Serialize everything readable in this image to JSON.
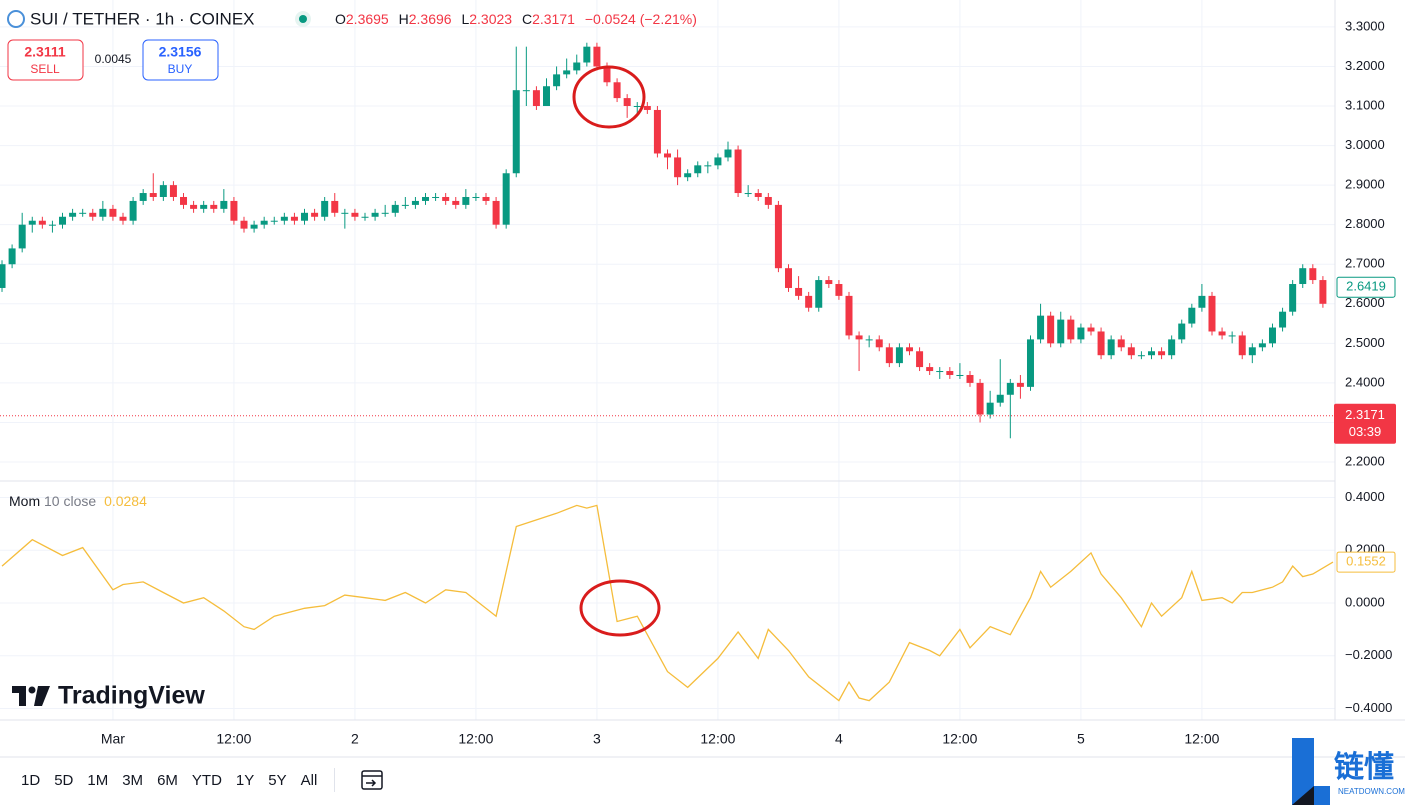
{
  "header": {
    "symbol": "SUI / TETHER · 1h · COINEX",
    "ohlc": [
      {
        "key": "O",
        "value": 2.3695
      },
      {
        "key": "H",
        "value": 2.3696
      },
      {
        "key": "L",
        "value": 2.3023
      },
      {
        "key": "C",
        "value": 2.3171
      }
    ],
    "change": "−0.0524 (−2.21%)"
  },
  "trade": {
    "sell": {
      "price": 2.3111,
      "label": "SELL"
    },
    "spread": 0.0045,
    "buy": {
      "price": 2.3156,
      "label": "BUY"
    }
  },
  "timeframes": [
    "1D",
    "5D",
    "1M",
    "3M",
    "6M",
    "YTD",
    "1Y",
    "5Y",
    "All"
  ],
  "logo": "TradingView",
  "watermark": {
    "title": "链懂",
    "site": "NEATDOWN.COM"
  },
  "chart_data": [
    {
      "type": "candlestick",
      "up_color": "#089981",
      "down_color": "#f23645",
      "x": [
        -11,
        -10,
        -9,
        -8,
        -7,
        -6,
        -5,
        -4,
        -3,
        -2,
        -1,
        0,
        1,
        2,
        3,
        4,
        5,
        6,
        7,
        8,
        9,
        10,
        11,
        12,
        13,
        14,
        15,
        16,
        17,
        18,
        19,
        20,
        21,
        22,
        23,
        24,
        25,
        26,
        27,
        28,
        29,
        30,
        31,
        32,
        33,
        34,
        35,
        36,
        37,
        38,
        39,
        40,
        41,
        42,
        43,
        44,
        45,
        46,
        47,
        48,
        49,
        50,
        51,
        52,
        53,
        54,
        55,
        56,
        57,
        58,
        59,
        60,
        61,
        62,
        63,
        64,
        65,
        66,
        67,
        68,
        69,
        70,
        71,
        72,
        73,
        74,
        75,
        76,
        77,
        78,
        79,
        80,
        81,
        82,
        83,
        84,
        85,
        86,
        87,
        88,
        89,
        90,
        91,
        92,
        93,
        94,
        95,
        96,
        97,
        98,
        99,
        100,
        101,
        102,
        103,
        104,
        105,
        106,
        107,
        108,
        109,
        110,
        111,
        112,
        113,
        114,
        115,
        116,
        117,
        118,
        119,
        120
      ],
      "open": [
        2.64,
        2.7,
        2.74,
        2.8,
        2.81,
        2.8,
        2.8,
        2.82,
        2.83,
        2.83,
        2.82,
        2.84,
        2.82,
        2.81,
        2.86,
        2.88,
        2.87,
        2.9,
        2.87,
        2.85,
        2.84,
        2.85,
        2.84,
        2.86,
        2.81,
        2.79,
        2.8,
        2.81,
        2.81,
        2.82,
        2.81,
        2.83,
        2.82,
        2.86,
        2.83,
        2.83,
        2.82,
        2.82,
        2.83,
        2.83,
        2.85,
        2.85,
        2.86,
        2.87,
        2.87,
        2.86,
        2.85,
        2.87,
        2.87,
        2.86,
        2.8,
        2.93,
        3.14,
        3.14,
        3.1,
        3.15,
        3.18,
        3.19,
        3.21,
        3.25,
        3.2,
        3.16,
        3.12,
        3.1,
        3.1,
        3.09,
        2.98,
        2.97,
        2.92,
        2.93,
        2.95,
        2.95,
        2.97,
        2.99,
        2.88,
        2.88,
        2.87,
        2.85,
        2.69,
        2.64,
        2.62,
        2.59,
        2.66,
        2.65,
        2.62,
        2.52,
        2.51,
        2.51,
        2.49,
        2.45,
        2.49,
        2.48,
        2.44,
        2.43,
        2.43,
        2.42,
        2.42,
        2.4,
        2.32,
        2.35,
        2.37,
        2.4,
        2.39,
        2.51,
        2.57,
        2.5,
        2.56,
        2.51,
        2.54,
        2.53,
        2.47,
        2.51,
        2.49,
        2.47,
        2.47,
        2.48,
        2.47,
        2.51,
        2.55,
        2.59,
        2.62,
        2.53,
        2.52,
        2.52,
        2.47,
        2.49,
        2.5,
        2.54,
        2.58,
        2.65,
        2.69,
        2.66
      ],
      "high": [
        2.71,
        2.75,
        2.83,
        2.82,
        2.82,
        2.81,
        2.83,
        2.84,
        2.84,
        2.84,
        2.86,
        2.85,
        2.83,
        2.87,
        2.89,
        2.93,
        2.91,
        2.91,
        2.88,
        2.86,
        2.86,
        2.86,
        2.89,
        2.87,
        2.82,
        2.81,
        2.82,
        2.82,
        2.83,
        2.83,
        2.84,
        2.84,
        2.87,
        2.88,
        2.84,
        2.84,
        2.83,
        2.84,
        2.85,
        2.86,
        2.87,
        2.87,
        2.88,
        2.88,
        2.88,
        2.87,
        2.89,
        2.88,
        2.88,
        2.87,
        2.94,
        3.25,
        3.25,
        3.15,
        3.17,
        3.2,
        3.22,
        3.23,
        3.26,
        3.26,
        3.21,
        3.17,
        3.13,
        3.11,
        3.11,
        3.1,
        2.99,
        2.99,
        2.94,
        2.96,
        2.96,
        2.98,
        3.01,
        3.0,
        2.9,
        2.89,
        2.88,
        2.86,
        2.7,
        2.67,
        2.63,
        2.67,
        2.67,
        2.66,
        2.63,
        2.53,
        2.52,
        2.52,
        2.5,
        2.5,
        2.5,
        2.49,
        2.45,
        2.44,
        2.44,
        2.45,
        2.43,
        2.41,
        2.38,
        2.46,
        2.41,
        2.42,
        2.52,
        2.6,
        2.58,
        2.58,
        2.57,
        2.55,
        2.55,
        2.54,
        2.52,
        2.52,
        2.5,
        2.48,
        2.49,
        2.49,
        2.52,
        2.56,
        2.6,
        2.65,
        2.63,
        2.54,
        2.53,
        2.53,
        2.5,
        2.51,
        2.55,
        2.59,
        2.66,
        2.7,
        2.7,
        2.67
      ],
      "low": [
        2.63,
        2.69,
        2.73,
        2.78,
        2.79,
        2.78,
        2.79,
        2.81,
        2.82,
        2.81,
        2.81,
        2.81,
        2.8,
        2.8,
        2.85,
        2.86,
        2.86,
        2.86,
        2.84,
        2.83,
        2.83,
        2.83,
        2.83,
        2.8,
        2.78,
        2.78,
        2.79,
        2.8,
        2.8,
        2.8,
        2.8,
        2.81,
        2.81,
        2.82,
        2.79,
        2.81,
        2.81,
        2.81,
        2.82,
        2.82,
        2.84,
        2.84,
        2.85,
        2.86,
        2.85,
        2.84,
        2.84,
        2.86,
        2.85,
        2.79,
        2.79,
        2.92,
        3.1,
        3.09,
        3.1,
        3.14,
        3.17,
        3.18,
        3.2,
        3.19,
        3.15,
        3.11,
        3.07,
        3.08,
        3.08,
        2.97,
        2.94,
        2.9,
        2.91,
        2.92,
        2.93,
        2.94,
        2.96,
        2.87,
        2.87,
        2.86,
        2.84,
        2.68,
        2.63,
        2.61,
        2.58,
        2.58,
        2.64,
        2.61,
        2.51,
        2.43,
        2.49,
        2.48,
        2.44,
        2.44,
        2.47,
        2.43,
        2.42,
        2.41,
        2.41,
        2.41,
        2.39,
        2.3,
        2.31,
        2.34,
        2.26,
        2.36,
        2.38,
        2.5,
        2.49,
        2.49,
        2.5,
        2.5,
        2.52,
        2.46,
        2.46,
        2.48,
        2.46,
        2.46,
        2.46,
        2.46,
        2.46,
        2.5,
        2.54,
        2.58,
        2.52,
        2.51,
        2.5,
        2.46,
        2.45,
        2.48,
        2.49,
        2.53,
        2.57,
        2.64,
        2.65,
        2.59
      ],
      "close": [
        2.7,
        2.74,
        2.8,
        2.81,
        2.8,
        2.8,
        2.82,
        2.83,
        2.83,
        2.82,
        2.84,
        2.82,
        2.81,
        2.86,
        2.88,
        2.87,
        2.9,
        2.87,
        2.85,
        2.84,
        2.85,
        2.84,
        2.86,
        2.81,
        2.79,
        2.8,
        2.81,
        2.81,
        2.82,
        2.81,
        2.83,
        2.82,
        2.86,
        2.83,
        2.83,
        2.82,
        2.82,
        2.83,
        2.83,
        2.85,
        2.85,
        2.86,
        2.87,
        2.87,
        2.86,
        2.85,
        2.87,
        2.87,
        2.86,
        2.8,
        2.93,
        3.14,
        3.14,
        3.1,
        3.15,
        3.18,
        3.19,
        3.21,
        3.25,
        3.2,
        3.16,
        3.12,
        3.1,
        3.1,
        3.09,
        2.98,
        2.97,
        2.92,
        2.93,
        2.95,
        2.95,
        2.97,
        2.99,
        2.88,
        2.88,
        2.87,
        2.85,
        2.69,
        2.64,
        2.62,
        2.59,
        2.66,
        2.65,
        2.62,
        2.52,
        2.51,
        2.51,
        2.49,
        2.45,
        2.49,
        2.48,
        2.44,
        2.43,
        2.43,
        2.42,
        2.42,
        2.4,
        2.32,
        2.35,
        2.37,
        2.4,
        2.39,
        2.51,
        2.57,
        2.5,
        2.56,
        2.51,
        2.54,
        2.53,
        2.47,
        2.51,
        2.49,
        2.47,
        2.47,
        2.48,
        2.47,
        2.51,
        2.55,
        2.59,
        2.62,
        2.53,
        2.52,
        2.52,
        2.47,
        2.49,
        2.5,
        2.54,
        2.58,
        2.65,
        2.69,
        2.66,
        2.6
      ],
      "xlim": [
        -11.2,
        121.2
      ],
      "xticks": [
        {
          "value": 0,
          "label": "Mar"
        },
        {
          "value": 12,
          "label": "12:00"
        },
        {
          "value": 24,
          "label": "2"
        },
        {
          "value": 36,
          "label": "12:00"
        },
        {
          "value": 48,
          "label": "3"
        },
        {
          "value": 60,
          "label": "12:00"
        },
        {
          "value": 72,
          "label": "4"
        },
        {
          "value": 84,
          "label": "12:00"
        },
        {
          "value": 96,
          "label": "5"
        },
        {
          "value": 108,
          "label": "12:00"
        }
      ],
      "ylim": [
        2.152,
        3.368
      ],
      "yticks": [
        {
          "value": 2.2,
          "label": "2.2000"
        },
        {
          "value": 2.3,
          "label": "2.3000"
        },
        {
          "value": 2.4,
          "label": "2.4000"
        },
        {
          "value": 2.5,
          "label": "2.5000"
        },
        {
          "value": 2.6,
          "label": "2.6000"
        },
        {
          "value": 2.7,
          "label": "2.7000"
        },
        {
          "value": 2.8,
          "label": "2.8000"
        },
        {
          "value": 2.9,
          "label": "2.9000"
        },
        {
          "value": 3.0,
          "label": "3.0000"
        },
        {
          "value": 3.1,
          "label": "3.1000"
        },
        {
          "value": 3.2,
          "label": "3.2000"
        },
        {
          "value": 3.3,
          "label": "3.3000"
        }
      ],
      "grid": true,
      "last_price": 2.6419,
      "current_price": 2.3171,
      "countdown": "03:39"
    },
    {
      "type": "line",
      "name": "Mom",
      "params": "10 close",
      "current": 0.0284,
      "last_value": 0.1552,
      "color": "#f5bd3c",
      "x": [
        -11,
        -8,
        -5,
        -3,
        0,
        1,
        3,
        5,
        7,
        9,
        11,
        13,
        14,
        16,
        19,
        21,
        23,
        25,
        27,
        29,
        31,
        33,
        35,
        38,
        40,
        44,
        46,
        47,
        48,
        50,
        52,
        55,
        57,
        60,
        62,
        64,
        65,
        67,
        69,
        72,
        73,
        74,
        75,
        77,
        79,
        81,
        82,
        84,
        85,
        87,
        89,
        91,
        92,
        93,
        95,
        97,
        98,
        100,
        102,
        103,
        104,
        106,
        107,
        108,
        110,
        111,
        112,
        113,
        115,
        116,
        117,
        118,
        119,
        121
      ],
      "values": [
        0.14,
        0.24,
        0.18,
        0.21,
        0.05,
        0.07,
        0.08,
        0.04,
        0.0,
        0.02,
        -0.03,
        -0.09,
        -0.1,
        -0.05,
        -0.02,
        -0.01,
        0.03,
        0.02,
        0.01,
        0.04,
        0.0,
        0.05,
        0.04,
        -0.05,
        0.29,
        0.34,
        0.37,
        0.36,
        0.37,
        -0.07,
        -0.05,
        -0.26,
        -0.32,
        -0.21,
        -0.11,
        -0.21,
        -0.1,
        -0.18,
        -0.28,
        -0.37,
        -0.3,
        -0.36,
        -0.37,
        -0.3,
        -0.15,
        -0.18,
        -0.2,
        -0.1,
        -0.17,
        -0.09,
        -0.12,
        0.02,
        0.12,
        0.06,
        0.12,
        0.19,
        0.11,
        0.02,
        -0.09,
        0.0,
        -0.05,
        0.02,
        0.12,
        0.01,
        0.02,
        0.0,
        0.04,
        0.04,
        0.06,
        0.08,
        0.14,
        0.1,
        0.11,
        0.155
      ],
      "ylim": [
        -0.4436,
        0.4626
      ],
      "yticks": [
        {
          "value": 0.4,
          "label": "0.4000"
        },
        {
          "value": 0.2,
          "label": "0.2000"
        },
        {
          "value": 0,
          "label": "0.0000"
        },
        {
          "value": -0.2,
          "label": "−0.2000"
        },
        {
          "value": -0.4,
          "label": "−0.4000"
        }
      ],
      "grid": true
    }
  ]
}
